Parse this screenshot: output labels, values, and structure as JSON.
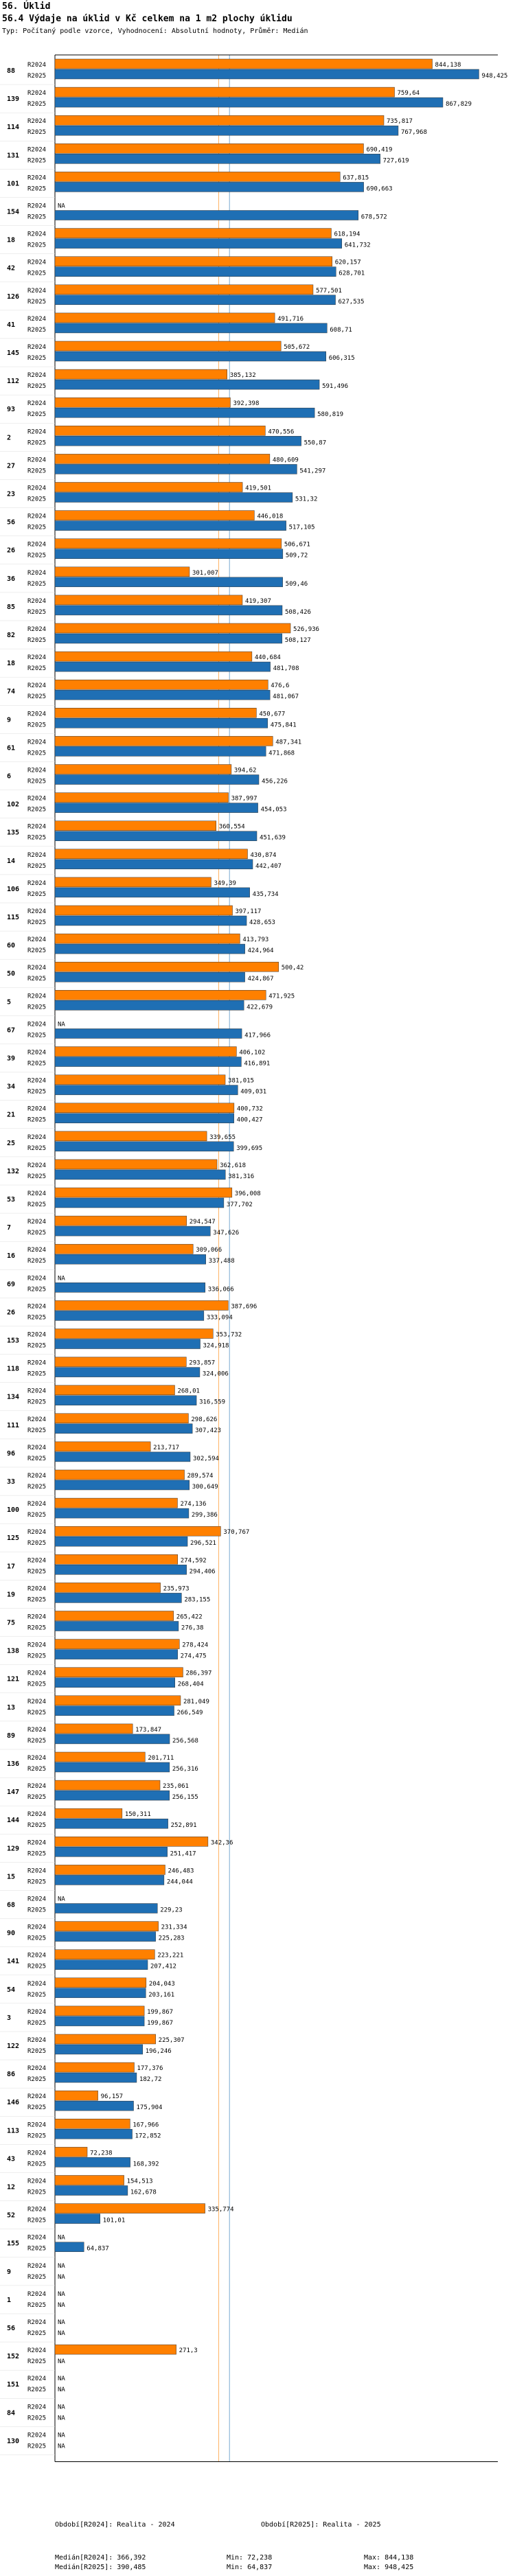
{
  "header": {
    "title": "56. Úklid",
    "subtitle": "56.4 Výdaje na úklid v Kč celkem na 1 m2 plochy úklidu",
    "note": "Typ: Počítaný podle vzorce, Vyhodnocení: Absolutní hodnoty, Průměr: Medián"
  },
  "chart_data": {
    "type": "bar",
    "orientation": "horizontal",
    "title": "56.4 Výdaje na úklid v Kč celkem na 1 m2 plochy úklidu",
    "xlim": [
      0,
      1000
    ],
    "series": [
      {
        "name": "R2024",
        "color": "#ff8000"
      },
      {
        "name": "R2025",
        "color": "#1f6fb4"
      }
    ],
    "groups": [
      {
        "id": "88",
        "R2024": 844.138,
        "R2025": 948.425
      },
      {
        "id": "139",
        "R2024": 759.64,
        "R2025": 867.829
      },
      {
        "id": "114",
        "R2024": 735.817,
        "R2025": 767.968
      },
      {
        "id": "131",
        "R2024": 690.419,
        "R2025": 727.619
      },
      {
        "id": "101",
        "R2024": 637.815,
        "R2025": 690.663
      },
      {
        "id": "154",
        "R2024": null,
        "R2025": 678.572
      },
      {
        "id": "18",
        "R2024": 618.194,
        "R2025": 641.732
      },
      {
        "id": "42",
        "R2024": 620.157,
        "R2025": 628.701
      },
      {
        "id": "126",
        "R2024": 577.501,
        "R2025": 627.535
      },
      {
        "id": "41",
        "R2024": 491.716,
        "R2025": 608.71
      },
      {
        "id": "145",
        "R2024": 505.672,
        "R2025": 606.315
      },
      {
        "id": "112",
        "R2024": 385.132,
        "R2025": 591.496
      },
      {
        "id": "93",
        "R2024": 392.398,
        "R2025": 580.819
      },
      {
        "id": "2",
        "R2024": 470.556,
        "R2025": 550.87
      },
      {
        "id": "27",
        "R2024": 480.609,
        "R2025": 541.297
      },
      {
        "id": "23",
        "R2024": 419.501,
        "R2025": 531.32
      },
      {
        "id": "56",
        "R2024": 446.018,
        "R2025": 517.105
      },
      {
        "id": "26",
        "R2024": 506.671,
        "R2025": 509.72
      },
      {
        "id": "36",
        "R2024": 301.007,
        "R2025": 509.46
      },
      {
        "id": "85",
        "R2024": 419.307,
        "R2025": 508.426
      },
      {
        "id": "82",
        "R2024": 526.936,
        "R2025": 508.127
      },
      {
        "id": "18",
        "R2024": 440.684,
        "R2025": 481.708
      },
      {
        "id": "74",
        "R2024": 476.6,
        "R2025": 481.067
      },
      {
        "id": "9",
        "R2024": 450.677,
        "R2025": 475.841
      },
      {
        "id": "61",
        "R2024": 487.341,
        "R2025": 471.868
      },
      {
        "id": "6",
        "R2024": 394.62,
        "R2025": 456.226
      },
      {
        "id": "102",
        "R2024": 387.997,
        "R2025": 454.053
      },
      {
        "id": "135",
        "R2024": 360.554,
        "R2025": 451.639
      },
      {
        "id": "14",
        "R2024": 430.874,
        "R2025": 442.407
      },
      {
        "id": "106",
        "R2024": 349.39,
        "R2025": 435.734
      },
      {
        "id": "115",
        "R2024": 397.117,
        "R2025": 428.653
      },
      {
        "id": "60",
        "R2024": 413.793,
        "R2025": 424.964
      },
      {
        "id": "50",
        "R2024": 500.42,
        "R2025": 424.867
      },
      {
        "id": "5",
        "R2024": 471.925,
        "R2025": 422.679
      },
      {
        "id": "67",
        "R2024": null,
        "R2025": 417.966
      },
      {
        "id": "39",
        "R2024": 406.102,
        "R2025": 416.891
      },
      {
        "id": "34",
        "R2024": 381.015,
        "R2025": 409.031
      },
      {
        "id": "21",
        "R2024": 400.732,
        "R2025": 400.427
      },
      {
        "id": "25",
        "R2024": 339.655,
        "R2025": 399.695
      },
      {
        "id": "132",
        "R2024": 362.618,
        "R2025": 381.316
      },
      {
        "id": "53",
        "R2024": 396.008,
        "R2025": 377.702
      },
      {
        "id": "7",
        "R2024": 294.547,
        "R2025": 347.626
      },
      {
        "id": "16",
        "R2024": 309.066,
        "R2025": 337.488
      },
      {
        "id": "69",
        "R2024": null,
        "R2025": 336.066
      },
      {
        "id": "26",
        "R2024": 387.696,
        "R2025": 333.094
      },
      {
        "id": "153",
        "R2024": 353.732,
        "R2025": 324.918
      },
      {
        "id": "118",
        "R2024": 293.857,
        "R2025": 324.006
      },
      {
        "id": "134",
        "R2024": 268.01,
        "R2025": 316.559
      },
      {
        "id": "111",
        "R2024": 298.626,
        "R2025": 307.423
      },
      {
        "id": "96",
        "R2024": 213.717,
        "R2025": 302.594
      },
      {
        "id": "33",
        "R2024": 289.574,
        "R2025": 300.649
      },
      {
        "id": "100",
        "R2024": 274.136,
        "R2025": 299.386
      },
      {
        "id": "125",
        "R2024": 370.767,
        "R2025": 296.521
      },
      {
        "id": "17",
        "R2024": 274.592,
        "R2025": 294.406
      },
      {
        "id": "19",
        "R2024": 235.973,
        "R2025": 283.155
      },
      {
        "id": "75",
        "R2024": 265.422,
        "R2025": 276.38
      },
      {
        "id": "138",
        "R2024": 278.424,
        "R2025": 274.475
      },
      {
        "id": "121",
        "R2024": 286.397,
        "R2025": 268.404
      },
      {
        "id": "13",
        "R2024": 281.049,
        "R2025": 266.549
      },
      {
        "id": "89",
        "R2024": 173.847,
        "R2025": 256.568
      },
      {
        "id": "136",
        "R2024": 201.711,
        "R2025": 256.316
      },
      {
        "id": "147",
        "R2024": 235.061,
        "R2025": 256.155
      },
      {
        "id": "144",
        "R2024": 150.311,
        "R2025": 252.891
      },
      {
        "id": "129",
        "R2024": 342.36,
        "R2025": 251.417
      },
      {
        "id": "15",
        "R2024": 246.483,
        "R2025": 244.044
      },
      {
        "id": "68",
        "R2024": null,
        "R2025": 229.23
      },
      {
        "id": "90",
        "R2024": 231.334,
        "R2025": 225.283
      },
      {
        "id": "141",
        "R2024": 223.221,
        "R2025": 207.412
      },
      {
        "id": "54",
        "R2024": 204.043,
        "R2025": 203.161
      },
      {
        "id": "3",
        "R2024": 199.867,
        "R2025": 199.867
      },
      {
        "id": "122",
        "R2024": 225.307,
        "R2025": 196.246
      },
      {
        "id": "86",
        "R2024": 177.376,
        "R2025": 182.72
      },
      {
        "id": "146",
        "R2024": 96.157,
        "R2025": 175.904
      },
      {
        "id": "113",
        "R2024": 167.966,
        "R2025": 172.852
      },
      {
        "id": "43",
        "R2024": 72.238,
        "R2025": 168.392
      },
      {
        "id": "12",
        "R2024": 154.513,
        "R2025": 162.678
      },
      {
        "id": "52",
        "R2024": 335.774,
        "R2025": 101.01
      },
      {
        "id": "155",
        "R2024": null,
        "R2025": 64.837
      },
      {
        "id": "9",
        "R2024": null,
        "R2025": null
      },
      {
        "id": "1",
        "R2024": null,
        "R2025": null
      },
      {
        "id": "56",
        "R2024": null,
        "R2025": null
      },
      {
        "id": "152",
        "R2024": 271.3,
        "R2025": null
      },
      {
        "id": "151",
        "R2024": null,
        "R2025": null
      },
      {
        "id": "84",
        "R2024": null,
        "R2025": null
      },
      {
        "id": "130",
        "R2024": null,
        "R2025": null
      }
    ],
    "na_label": "NA",
    "reference_lines": [
      {
        "name": "Medián R2024",
        "value": 366.392,
        "color": "#ff8000"
      },
      {
        "name": "Medián R2025",
        "value": 390.485,
        "color": "#1f6fb4"
      }
    ]
  },
  "legend": {
    "s2024_label": "Období[R2024]: Realita - 2024",
    "s2025_label": "Období[R2025]: Realita - 2025",
    "median2024": "Medián[R2024]: 366,392",
    "median2025": "Medián[R2025]: 390,485",
    "min2024": "Min: 72,238",
    "min2025": "Min: 64,837",
    "max2024": "Max: 844,138",
    "max2025": "Max: 948,425"
  },
  "colors": {
    "r2024": "#ff8000",
    "r2025": "#1f6fb4",
    "text": "#000000"
  }
}
